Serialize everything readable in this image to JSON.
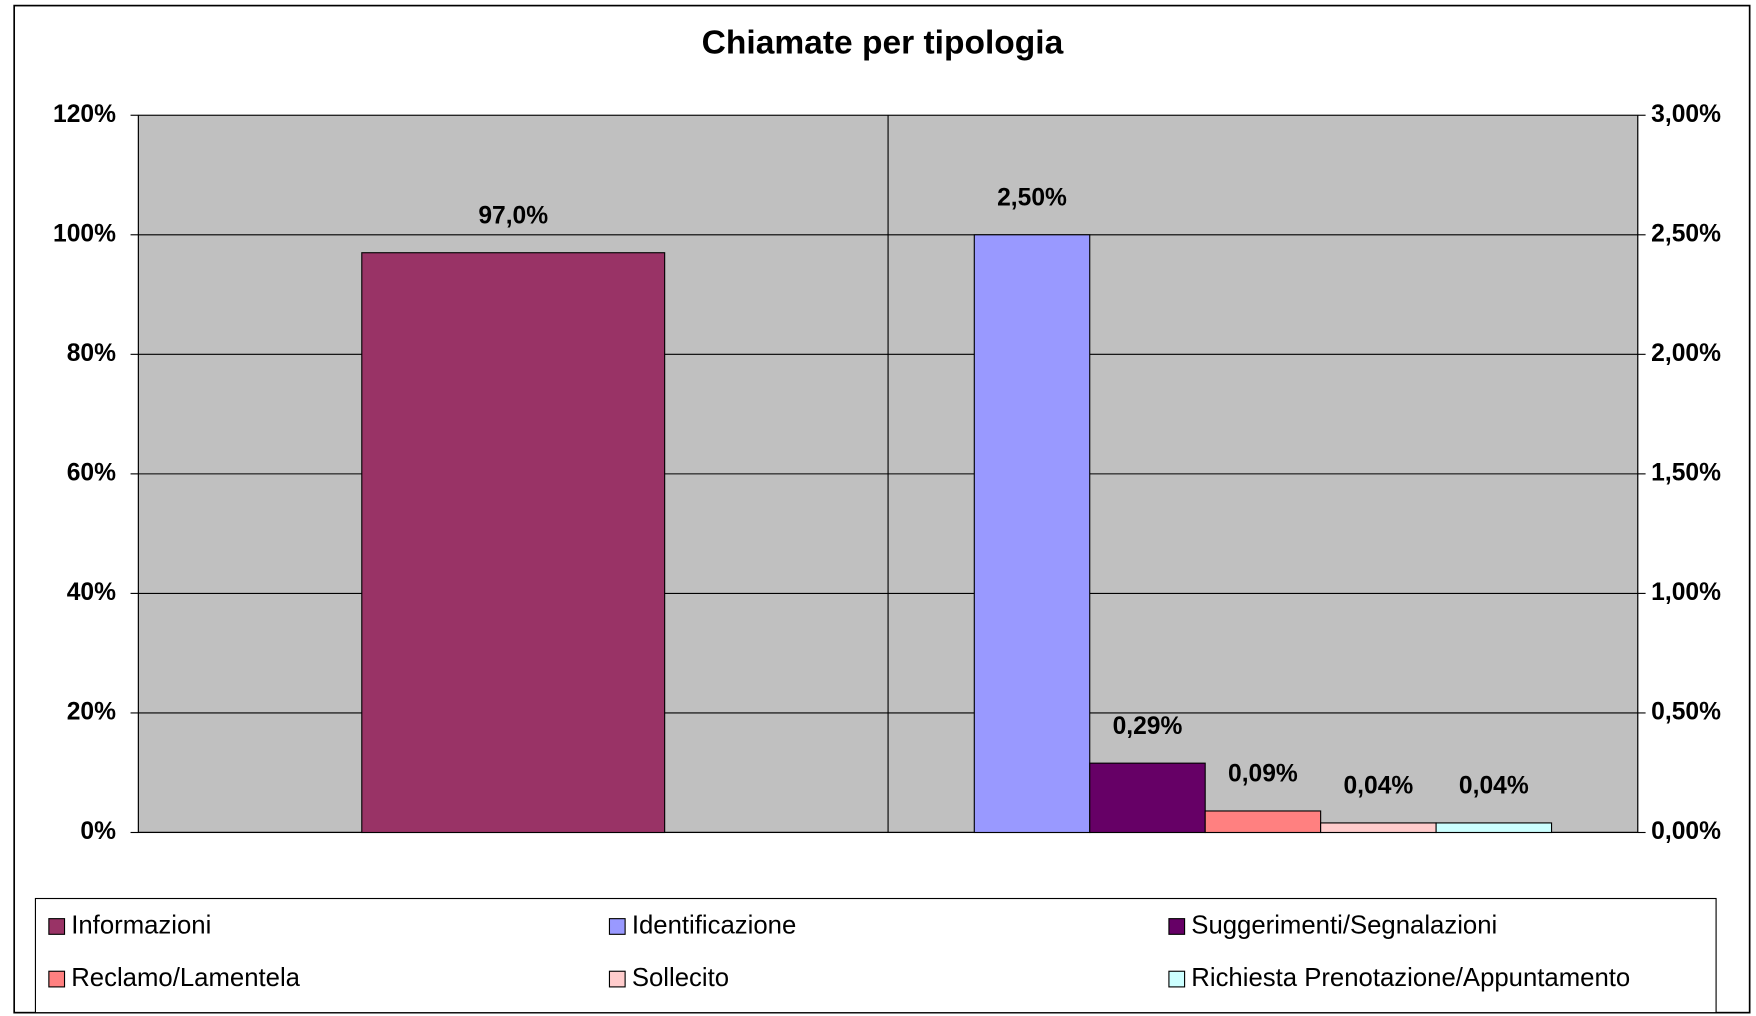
{
  "chart_data": {
    "type": "bar",
    "title": "Chiamate per tipologia",
    "categories": [
      null,
      null
    ],
    "series": [
      {
        "name": "Informazioni",
        "color": "#993366",
        "axis": "y",
        "values": [
          97,
          null
        ],
        "value_labels": [
          "97,0%",
          null
        ]
      },
      {
        "name": "Identificazione",
        "color": "#9999ff",
        "axis": "y2",
        "values": [
          null,
          2.5
        ],
        "value_labels": [
          null,
          "2,50%"
        ]
      },
      {
        "name": "Suggerimenti/Segnalazioni",
        "color": "#660066",
        "axis": "y2",
        "values": [
          null,
          0.29
        ],
        "value_labels": [
          null,
          "0,29%"
        ]
      },
      {
        "name": "Reclamo/Lamentela",
        "color": "#ff8080",
        "axis": "y2",
        "values": [
          null,
          0.09
        ],
        "value_labels": [
          null,
          "0,09%"
        ]
      },
      {
        "name": "Sollecito",
        "color": "#ffcccc",
        "axis": "y2",
        "values": [
          null,
          0.04
        ],
        "value_labels": [
          null,
          "0,04%"
        ]
      },
      {
        "name": "Richiesta Prenotazione/Appuntamento",
        "color": "#ccffff",
        "axis": "y2",
        "values": [
          null,
          0.04
        ],
        "value_labels": [
          null,
          "0,04%"
        ]
      }
    ],
    "ylim": [
      0,
      120
    ],
    "yticks": [
      {
        "value": 0,
        "label": "0%"
      },
      {
        "value": 20,
        "label": "20%"
      },
      {
        "value": 40,
        "label": "40%"
      },
      {
        "value": 60,
        "label": "60%"
      },
      {
        "value": 80,
        "label": "80%"
      },
      {
        "value": 100,
        "label": "100%"
      },
      {
        "value": 120,
        "label": "120%"
      }
    ],
    "y2lim": [
      0,
      3
    ],
    "y2ticks": [
      {
        "value": 0,
        "label": "0,00%"
      },
      {
        "value": 0.5,
        "label": "0,50%"
      },
      {
        "value": 1,
        "label": "1,00%"
      },
      {
        "value": 1.5,
        "label": "1,50%"
      },
      {
        "value": 2,
        "label": "2,00%"
      },
      {
        "value": 2.5,
        "label": "2,50%"
      },
      {
        "value": 3,
        "label": "3,00%"
      }
    ],
    "grid": true,
    "legend": "bottom"
  }
}
